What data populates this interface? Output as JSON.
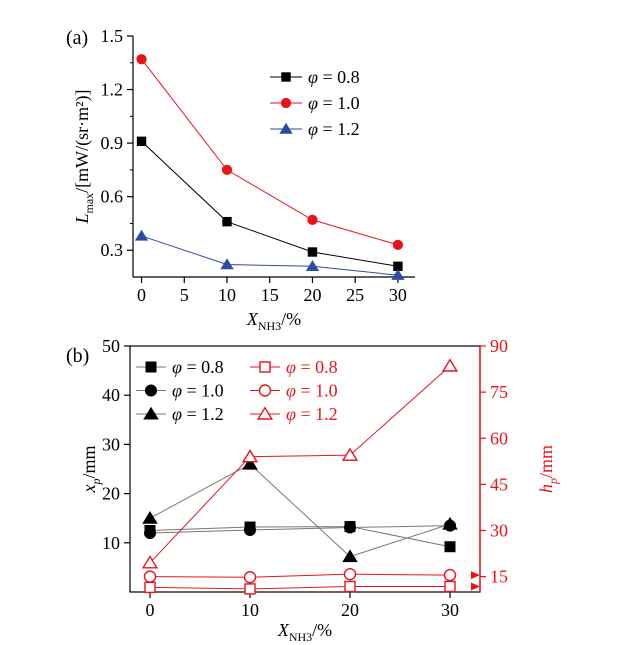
{
  "colors": {
    "black": "#000000",
    "red": "#e8141c",
    "blue": "#2f4aa3",
    "red_axis": "#e8141c"
  },
  "chart_data": [
    {
      "panel_label": "(a)",
      "type": "line",
      "xlabel": {
        "main": "X",
        "sub": "NH3",
        "unit": "/%"
      },
      "ylabel": {
        "main": "L",
        "sub": "max",
        "unit": "/[mW/(sr·m²)]"
      },
      "xlim": [
        -1,
        32
      ],
      "ylim": [
        0.15,
        1.5
      ],
      "xticks": [
        0,
        5,
        10,
        15,
        20,
        25,
        30
      ],
      "xtick_labels": [
        "0",
        "5",
        "10",
        "15",
        "20",
        "25",
        "30"
      ],
      "yticks": [
        0.3,
        0.6,
        0.9,
        1.2,
        1.5
      ],
      "ytick_labels": [
        "0.3",
        "0.6",
        "0.9",
        "1.2",
        "1.5"
      ],
      "legend_position": "top-right",
      "x": [
        0,
        10,
        20,
        30
      ],
      "series": [
        {
          "name": "φ = 0.8",
          "marker": "square",
          "color": "#000000",
          "values": [
            0.91,
            0.46,
            0.29,
            0.21
          ]
        },
        {
          "name": "φ = 1.0",
          "marker": "circle",
          "color": "#e8141c",
          "values": [
            1.37,
            0.75,
            0.47,
            0.33
          ]
        },
        {
          "name": "φ = 1.2",
          "marker": "triangle",
          "color": "#2f4aa3",
          "values": [
            0.38,
            0.22,
            0.21,
            0.16
          ]
        }
      ]
    },
    {
      "panel_label": "(b)",
      "type": "line",
      "xlabel": {
        "main": "X",
        "sub": "NH3",
        "unit": "/%"
      },
      "ylabel_left": {
        "main": "x",
        "sub": "p",
        "unit": "/mm"
      },
      "ylabel_right": {
        "main": "h",
        "sub": "p",
        "unit": "/mm"
      },
      "xlim": [
        -2,
        33
      ],
      "ylim_left": [
        0,
        50
      ],
      "ylim_right": [
        10,
        90
      ],
      "xticks": [
        0,
        10,
        20,
        30
      ],
      "xtick_labels": [
        "0",
        "10",
        "20",
        "30"
      ],
      "yticks_left": [
        10,
        20,
        30,
        40,
        50
      ],
      "ytick_labels_left": [
        "10",
        "20",
        "30",
        "40",
        "50"
      ],
      "yticks_right": [
        15,
        30,
        45,
        60,
        75,
        90
      ],
      "ytick_labels_right": [
        "15",
        "30",
        "45",
        "60",
        "75",
        "90"
      ],
      "legend_position": "top-left",
      "x": [
        0,
        10,
        20,
        30
      ],
      "series_left": [
        {
          "name": "φ = 0.8",
          "marker": "square",
          "color": "#000000",
          "values": [
            12.5,
            13.2,
            13.3,
            9.2
          ]
        },
        {
          "name": "φ = 1.0",
          "marker": "circle",
          "color": "#000000",
          "values": [
            12.0,
            12.6,
            13.1,
            13.5
          ]
        },
        {
          "name": "φ = 1.2",
          "marker": "triangle",
          "color": "#000000",
          "values": [
            15.0,
            26.0,
            7.2,
            13.8
          ]
        }
      ],
      "series_right": [
        {
          "name": "φ = 0.8",
          "marker": "square-open",
          "color": "#e8141c",
          "values": [
            11.5,
            11.0,
            11.8,
            11.8
          ]
        },
        {
          "name": "φ = 1.0",
          "marker": "circle-open",
          "color": "#e8141c",
          "values": [
            15.0,
            14.8,
            15.8,
            15.5
          ]
        },
        {
          "name": "φ = 1.2",
          "marker": "triangle-open",
          "color": "#e8141c",
          "values": [
            19.5,
            54.0,
            54.5,
            83.5
          ]
        }
      ]
    }
  ]
}
